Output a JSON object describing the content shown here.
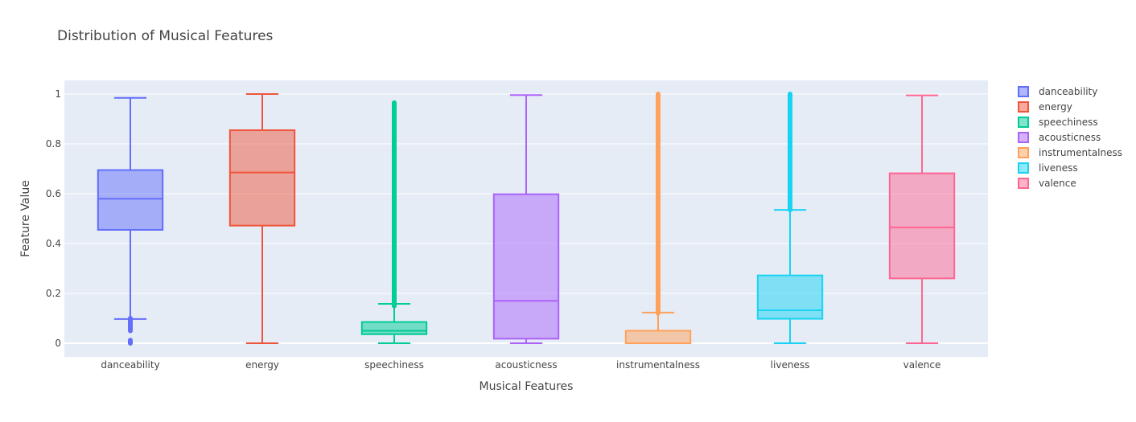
{
  "chart_data": {
    "type": "box",
    "title": "Distribution of Musical Features",
    "xlabel": "Musical Features",
    "ylabel": "Feature Value",
    "ylim": [
      -0.055,
      1.055
    ],
    "yticks": [
      0,
      0.2,
      0.4,
      0.6,
      0.8,
      1
    ],
    "ytick_labels": [
      "0",
      "0.2",
      "0.4",
      "0.6",
      "0.8",
      "1"
    ],
    "grid": true,
    "legend_position": "right",
    "plot_background": "#E5ECF6",
    "series": [
      {
        "name": "danceability",
        "color": "#636EFA",
        "q1": 0.455,
        "median": 0.58,
        "q3": 0.695,
        "lower_fence": 0.097,
        "upper_fence": 0.985,
        "outliers": [
          [
            0.05,
            0.1
          ],
          [
            0.0,
            0.012
          ]
        ]
      },
      {
        "name": "energy",
        "color": "#EF553B",
        "q1": 0.472,
        "median": 0.685,
        "q3": 0.855,
        "lower_fence": 0.0,
        "upper_fence": 1.0,
        "outliers": []
      },
      {
        "name": "speechiness",
        "color": "#00CC96",
        "q1": 0.036,
        "median": 0.05,
        "q3": 0.085,
        "lower_fence": 0.0,
        "upper_fence": 0.158,
        "outliers": [
          [
            0.15,
            0.965
          ]
        ]
      },
      {
        "name": "acousticness",
        "color": "#AB63FA",
        "q1": 0.018,
        "median": 0.17,
        "q3": 0.598,
        "lower_fence": 0.0,
        "upper_fence": 0.996,
        "outliers": []
      },
      {
        "name": "instrumentalness",
        "color": "#FFA15A",
        "q1": 0.0,
        "median": 0.0,
        "q3": 0.05,
        "lower_fence": 0.0,
        "upper_fence": 0.123,
        "outliers": [
          [
            0.12,
            1.0
          ]
        ]
      },
      {
        "name": "liveness",
        "color": "#19D3F3",
        "q1": 0.098,
        "median": 0.132,
        "q3": 0.272,
        "lower_fence": 0.0,
        "upper_fence": 0.535,
        "outliers": [
          [
            0.535,
            1.0
          ]
        ]
      },
      {
        "name": "valence",
        "color": "#FF6692",
        "q1": 0.26,
        "median": 0.465,
        "q3": 0.682,
        "lower_fence": 0.0,
        "upper_fence": 0.995,
        "outliers": []
      }
    ]
  }
}
